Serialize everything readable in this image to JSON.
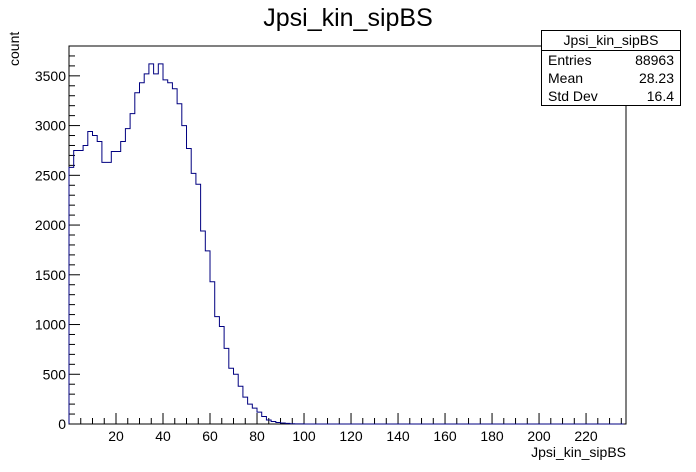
{
  "title": "Jpsi_kin_sipBS",
  "stats": {
    "title": "Jpsi_kin_sipBS",
    "rows": [
      {
        "label": "Entries",
        "value": "88963"
      },
      {
        "label": "Mean",
        "value": "28.23"
      },
      {
        "label": "Std Dev",
        "value": "16.4"
      }
    ]
  },
  "colors": {
    "line": "#000080",
    "axis": "#000000"
  },
  "chart_data": {
    "type": "bar",
    "title": "Jpsi_kin_sipBS",
    "xlabel": "Jpsi_kin_sipBS",
    "ylabel": "count",
    "xlim": [
      0,
      237
    ],
    "ylim": [
      0,
      3800
    ],
    "bin_width": 2,
    "x_ticks": [
      20,
      40,
      60,
      80,
      100,
      120,
      140,
      160,
      180,
      200,
      220
    ],
    "y_ticks": [
      0,
      500,
      1000,
      1500,
      2000,
      2500,
      3000,
      3500
    ],
    "grid": false,
    "legend": "stats box top-right",
    "values": [
      2580,
      2750,
      2750,
      2800,
      2940,
      2900,
      2840,
      2630,
      2630,
      2740,
      2740,
      2840,
      2970,
      3120,
      3330,
      3430,
      3520,
      3620,
      3520,
      3620,
      3460,
      3430,
      3370,
      3220,
      3000,
      2770,
      2520,
      2410,
      1940,
      1740,
      1430,
      1080,
      980,
      760,
      560,
      500,
      380,
      270,
      200,
      160,
      120,
      75,
      40,
      25,
      15,
      10,
      6,
      3,
      1,
      1,
      0,
      0,
      0,
      0,
      0,
      0,
      0,
      0,
      0,
      0,
      0,
      0,
      0,
      0,
      0,
      0,
      0,
      0,
      0,
      0,
      0,
      0,
      0,
      0,
      0,
      0,
      0,
      0,
      0,
      0,
      0,
      0,
      0,
      0,
      0,
      0,
      0,
      0,
      0,
      0,
      0,
      0,
      0,
      0,
      0,
      0,
      0,
      0,
      0,
      0,
      0,
      0,
      0,
      0,
      0,
      0,
      0,
      0,
      0,
      0,
      0,
      0,
      0,
      0,
      0,
      0,
      0,
      0
    ]
  }
}
